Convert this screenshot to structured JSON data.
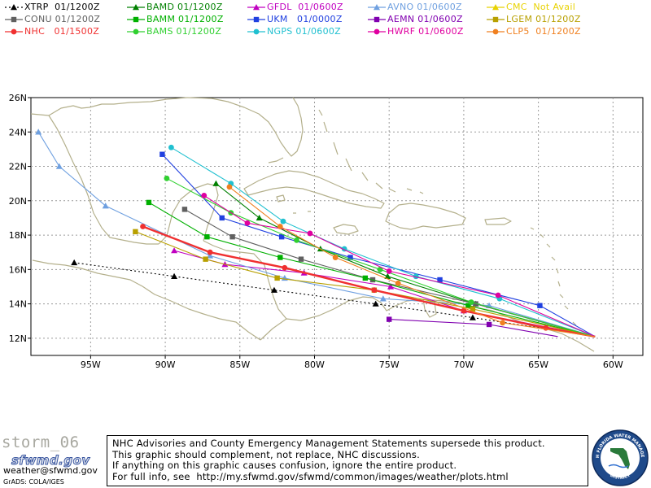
{
  "legend": [
    {
      "id": "xtrp",
      "label": "XTRP  01/1200Z",
      "color": "#000000",
      "marker": "triangle",
      "dashed": true
    },
    {
      "id": "bamd",
      "label": "BAMD 01/1200Z",
      "color": "#008000",
      "marker": "triangle",
      "dashed": false
    },
    {
      "id": "gfdl",
      "label": "GFDL  01/0600Z",
      "color": "#c000c0",
      "marker": "triangle",
      "dashed": false
    },
    {
      "id": "avno",
      "label": "AVNO 01/0600Z",
      "color": "#6fa0e0",
      "marker": "triangle",
      "dashed": false
    },
    {
      "id": "cmc",
      "label": "CMC  Not Avail",
      "color": "#e8d200",
      "marker": "triangle",
      "dashed": false
    },
    {
      "id": "conu",
      "label": "CONU 01/1200Z",
      "color": "#606060",
      "marker": "square",
      "dashed": false
    },
    {
      "id": "bamm",
      "label": "BAMM 01/1200Z",
      "color": "#00b000",
      "marker": "square",
      "dashed": false
    },
    {
      "id": "ukm",
      "label": "UKM   01/0000Z",
      "color": "#2040e0",
      "marker": "square",
      "dashed": false
    },
    {
      "id": "aemn",
      "label": "AEMN 01/0600Z",
      "color": "#8000b0",
      "marker": "square",
      "dashed": false
    },
    {
      "id": "lgem",
      "label": "LGEM 01/1200Z",
      "color": "#b8a000",
      "marker": "square",
      "dashed": false
    },
    {
      "id": "nhc",
      "label": "NHC   01/1500Z",
      "color": "#f03030",
      "marker": "circle",
      "dashed": false
    },
    {
      "id": "bams",
      "label": "BAMS 01/1200Z",
      "color": "#30d030",
      "marker": "circle",
      "dashed": false
    },
    {
      "id": "ngps",
      "label": "NGPS 01/0600Z",
      "color": "#20c0d0",
      "marker": "circle",
      "dashed": false
    },
    {
      "id": "hwrf",
      "label": "HWRF 01/0600Z",
      "color": "#e000a0",
      "marker": "circle",
      "dashed": false
    },
    {
      "id": "clp5",
      "label": "CLP5  01/1200Z",
      "color": "#f08020",
      "marker": "circle",
      "dashed": false
    }
  ],
  "axes": {
    "x_ticks": [
      "95W",
      "90W",
      "85W",
      "80W",
      "75W",
      "70W",
      "65W",
      "60W"
    ],
    "y_ticks": [
      "26N",
      "24N",
      "22N",
      "20N",
      "18N",
      "16N",
      "14N",
      "12N"
    ],
    "lon_range": [
      -99,
      -58
    ],
    "lat_range": [
      11,
      26
    ]
  },
  "chart_data": {
    "type": "line",
    "x_unit": "longitude (deg, negative = W)",
    "y_unit": "latitude (deg N)",
    "series": [
      {
        "name": "XTRP",
        "points": [
          [
            -61.2,
            12.1
          ],
          [
            -69.4,
            13.2
          ],
          [
            -75.9,
            14.0
          ],
          [
            -82.7,
            14.8
          ],
          [
            -89.4,
            15.6
          ],
          [
            -96.1,
            16.4
          ]
        ]
      },
      {
        "name": "BAMD",
        "points": [
          [
            -61.2,
            12.1
          ],
          [
            -69.2,
            14.0
          ],
          [
            -75.1,
            15.6
          ],
          [
            -79.6,
            17.2
          ],
          [
            -83.7,
            19.0
          ],
          [
            -86.6,
            21.0
          ]
        ]
      },
      {
        "name": "GFDL",
        "points": [
          [
            -61.2,
            12.1
          ],
          [
            -70.0,
            13.6
          ],
          [
            -74.9,
            15.0
          ],
          [
            -80.7,
            15.8
          ],
          [
            -86.0,
            16.3
          ],
          [
            -89.4,
            17.1
          ]
        ]
      },
      {
        "name": "AVNO",
        "points": [
          [
            -61.2,
            12.1
          ],
          [
            -68.3,
            13.9
          ],
          [
            -75.4,
            14.3
          ],
          [
            -82.0,
            15.5
          ],
          [
            -87.0,
            16.8
          ],
          [
            -94.0,
            19.7
          ],
          [
            -97.1,
            22.0
          ],
          [
            -98.5,
            24.0
          ]
        ]
      },
      {
        "name": "CONU",
        "points": [
          [
            -61.2,
            12.1
          ],
          [
            -69.2,
            14.0
          ],
          [
            -76.1,
            15.4
          ],
          [
            -80.9,
            16.6
          ],
          [
            -85.5,
            17.9
          ],
          [
            -88.7,
            19.5
          ]
        ]
      },
      {
        "name": "BAMM",
        "points": [
          [
            -61.2,
            12.1
          ],
          [
            -69.7,
            13.9
          ],
          [
            -76.6,
            15.5
          ],
          [
            -82.3,
            16.7
          ],
          [
            -87.2,
            17.9
          ],
          [
            -91.1,
            19.9
          ]
        ]
      },
      {
        "name": "UKM",
        "points": [
          [
            -61.2,
            12.1
          ],
          [
            -64.9,
            13.9
          ],
          [
            -71.6,
            15.4
          ],
          [
            -77.6,
            16.7
          ],
          [
            -82.2,
            17.9
          ],
          [
            -86.2,
            19.0
          ],
          [
            -90.2,
            22.7
          ]
        ]
      },
      {
        "name": "AEMN",
        "points": [
          [
            -63.7,
            12.1
          ],
          [
            -68.3,
            12.8
          ],
          [
            -75.0,
            13.1
          ]
        ]
      },
      {
        "name": "LGEM",
        "points": [
          [
            -61.2,
            12.1
          ],
          [
            -69.4,
            13.7
          ],
          [
            -76.0,
            14.8
          ],
          [
            -82.5,
            15.5
          ],
          [
            -87.3,
            16.6
          ],
          [
            -92.0,
            18.2
          ]
        ]
      },
      {
        "name": "NHC",
        "points": [
          [
            -61.2,
            12.1
          ],
          [
            -64.5,
            12.6
          ],
          [
            -70.0,
            13.6
          ],
          [
            -76.0,
            14.8
          ],
          [
            -82.0,
            16.1
          ],
          [
            -87.0,
            17.0
          ],
          [
            -91.5,
            18.5
          ]
        ]
      },
      {
        "name": "BAMS",
        "points": [
          [
            -61.2,
            12.1
          ],
          [
            -69.5,
            14.1
          ],
          [
            -75.6,
            16.0
          ],
          [
            -81.2,
            17.7
          ],
          [
            -85.6,
            19.3
          ],
          [
            -89.9,
            21.3
          ]
        ]
      },
      {
        "name": "NGPS",
        "points": [
          [
            -61.2,
            12.1
          ],
          [
            -67.6,
            14.3
          ],
          [
            -73.2,
            15.6
          ],
          [
            -78.0,
            17.2
          ],
          [
            -82.1,
            18.8
          ],
          [
            -85.6,
            21.0
          ],
          [
            -89.6,
            23.1
          ]
        ]
      },
      {
        "name": "HWRF",
        "points": [
          [
            -61.2,
            12.1
          ],
          [
            -67.7,
            14.5
          ],
          [
            -75.0,
            15.9
          ],
          [
            -80.3,
            18.1
          ],
          [
            -84.5,
            18.7
          ],
          [
            -87.4,
            20.3
          ]
        ]
      },
      {
        "name": "CLP5",
        "points": [
          [
            -61.2,
            12.1
          ],
          [
            -67.4,
            12.9
          ],
          [
            -74.4,
            15.2
          ],
          [
            -78.6,
            16.7
          ],
          [
            -82.3,
            18.5
          ],
          [
            -85.7,
            20.8
          ]
        ]
      }
    ]
  },
  "footer": {
    "storm_name": "storm_06",
    "logo_text": "sfwmd.gov",
    "email": "weather@sfwmd.gov",
    "grads": "GrADS: COLA/IGES",
    "disclaimer": [
      "NHC Advisories and County Emergency Management Statements supersede this product.",
      "This graphic should complement, not replace, NHC discussions.",
      "If anything on this graphic causes confusion, ignore the entire product.",
      "For full info, see  http://my.sfwmd.gov/sfwmd/common/images/weather/plots.html"
    ],
    "seal_top": "SOUTH FLORIDA WATER MANAGEMENT",
    "seal_bottom": "DISTRICT"
  }
}
